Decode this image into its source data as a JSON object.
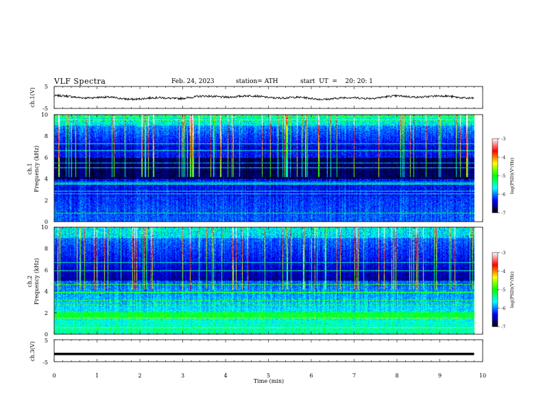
{
  "header": {
    "title": "VLF  Spectra",
    "date": "Feb. 24, 2023",
    "station": "station= ATH",
    "start": "start  UT  =    20: 20: 1"
  },
  "chart_data": [
    {
      "type": "line",
      "panel": "ch1-waveform",
      "ylabel": "ch.1(V)",
      "ylim": [
        -5,
        5
      ],
      "yticks": [
        "5",
        "-5"
      ],
      "xlim": [
        0,
        10
      ],
      "x_extent_min": 9.8,
      "approx_level": 0
    },
    {
      "type": "heatmap",
      "panel": "ch1-spectrogram",
      "ylabel": [
        "ch.1",
        "Frequency  (kHz)"
      ],
      "ylim": [
        0,
        10
      ],
      "yticks": [
        "0",
        "2",
        "4",
        "6",
        "8",
        "10"
      ],
      "xlim": [
        0,
        10
      ],
      "x_extent_min": 9.8,
      "colorbar": {
        "label": "log(PSD)(V²/Hz)",
        "range": [
          -7,
          -3
        ],
        "ticks": [
          "-3",
          "-4",
          "-5",
          "-6",
          "-7"
        ]
      }
    },
    {
      "type": "heatmap",
      "panel": "ch2-spectrogram",
      "ylabel": [
        "ch.2",
        "Frequency  (kHz)"
      ],
      "ylim": [
        0,
        10
      ],
      "yticks": [
        "0",
        "2",
        "4",
        "6",
        "8",
        "10"
      ],
      "xlim": [
        0,
        10
      ],
      "x_extent_min": 9.8,
      "colorbar": {
        "label": "log(PSD)(V²/Hz)",
        "range": [
          -7,
          -3
        ],
        "ticks": [
          "-3",
          "-4",
          "-5",
          "-6",
          "-7"
        ]
      }
    },
    {
      "type": "line",
      "panel": "ch3-waveform",
      "ylabel": "ch.3(V)",
      "ylim": [
        -5,
        5
      ],
      "yticks": [
        "5",
        "-5"
      ],
      "xlim": [
        0,
        10
      ],
      "x_extent_min": 9.8,
      "approx_level": -1.5,
      "xlabel": "Time  (min)",
      "xticks": [
        "0",
        "1",
        "2",
        "3",
        "4",
        "5",
        "6",
        "7",
        "8",
        "9",
        "10"
      ]
    }
  ],
  "colors": {
    "colormap": [
      "#000000",
      "#0000ff",
      "#00ffff",
      "#00ff00",
      "#ffff00",
      "#ff0000",
      "#ffffff"
    ]
  }
}
